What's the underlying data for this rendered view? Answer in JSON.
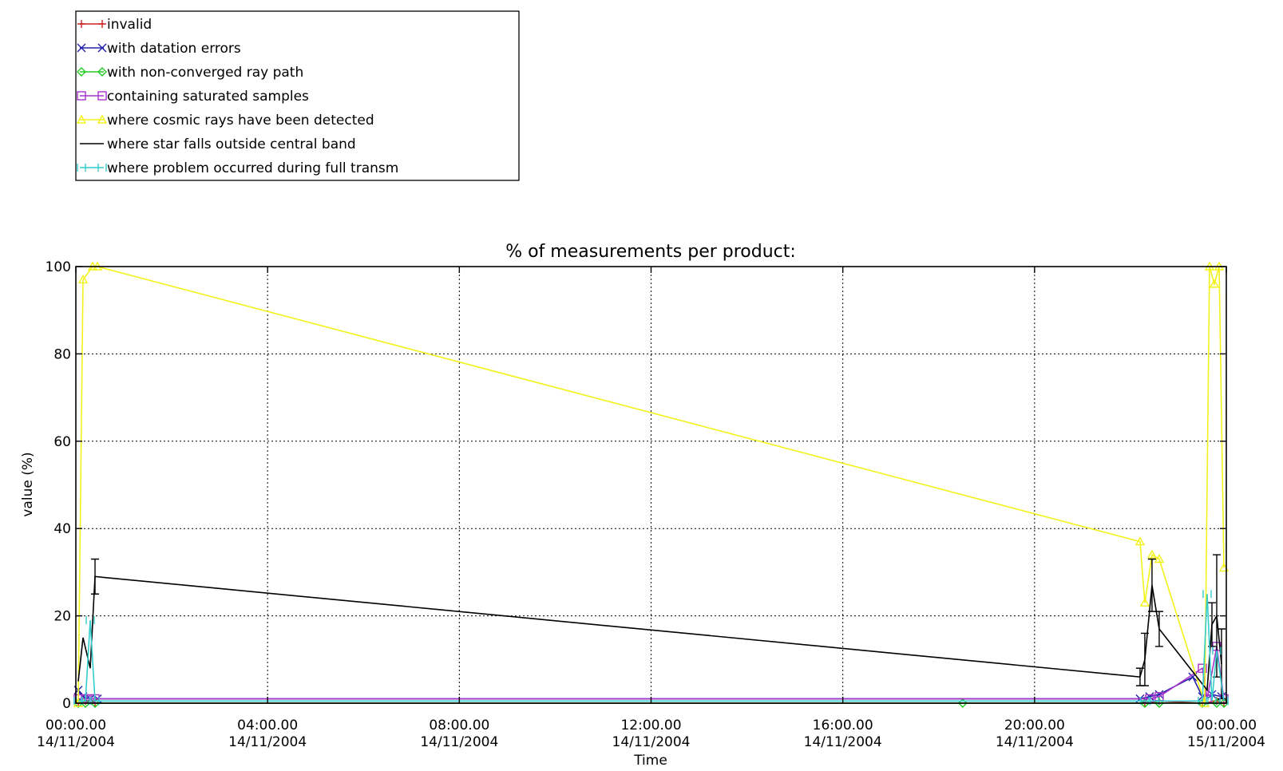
{
  "chart_data": {
    "type": "line",
    "title": "% of measurements per product:",
    "xlabel": "Time",
    "ylabel": "value (%)",
    "ylim": [
      0,
      100
    ],
    "xlim": [
      0,
      24
    ],
    "grid": true,
    "legend_position": "top-left, outside plot",
    "x_ticks": [
      {
        "value": 0,
        "time": "00:00.00",
        "date": "14/11/2004"
      },
      {
        "value": 4,
        "time": "04:00.00",
        "date": "14/11/2004"
      },
      {
        "value": 8,
        "time": "08:00.00",
        "date": "14/11/2004"
      },
      {
        "value": 12,
        "time": "12:00.00",
        "date": "14/11/2004"
      },
      {
        "value": 16,
        "time": "16:00.00",
        "date": "14/11/2004"
      },
      {
        "value": 20,
        "time": "20:00.00",
        "date": "14/11/2004"
      },
      {
        "value": 24,
        "time": "00:00.00",
        "date": "15/11/2004"
      }
    ],
    "y_ticks": [
      "0",
      "20",
      "40",
      "60",
      "80",
      "100"
    ],
    "series": [
      {
        "name": "invalid",
        "color": "#cc2222",
        "marker": "plus",
        "x": [
          0.05,
          0.2,
          0.4,
          22.3,
          22.6,
          23.5,
          23.8,
          23.95
        ],
        "y": [
          0,
          0.5,
          0,
          0,
          0.5,
          0,
          0.5,
          0
        ]
      },
      {
        "name": "with datation errors",
        "color": "#2222aa",
        "marker": "x",
        "x": [
          0.05,
          0.15,
          0.3,
          0.45,
          22.2,
          22.4,
          22.6,
          23.3,
          23.5,
          23.7,
          23.9
        ],
        "y": [
          3,
          1.5,
          1,
          1,
          1,
          1.5,
          2,
          6,
          1.5,
          2,
          1.5
        ]
      },
      {
        "name": "with non-converged ray path",
        "color": "#22cc22",
        "marker": "diamond",
        "x": [
          0.05,
          0.2,
          0.4,
          18.5,
          22.3,
          22.6,
          23.5,
          23.8,
          23.95
        ],
        "y": [
          0,
          0,
          0,
          0,
          0,
          0,
          0,
          0,
          0
        ]
      },
      {
        "name": "containing saturated samples",
        "color": "#aa33cc",
        "marker": "square",
        "x": [
          0.05,
          0.2,
          0.3,
          0.4,
          22.4,
          22.6,
          23.5,
          23.6,
          23.8,
          23.95
        ],
        "y": [
          1,
          1,
          1,
          1,
          1,
          1.5,
          8,
          1,
          13,
          1
        ]
      },
      {
        "name": "where cosmic rays have been detected",
        "color": "#f2f21a",
        "marker": "triangle",
        "x": [
          0.05,
          0.15,
          0.35,
          0.45,
          22.2,
          22.3,
          22.45,
          22.6,
          23.55,
          23.65,
          23.75,
          23.85,
          23.95
        ],
        "y": [
          0,
          97,
          100,
          100,
          37,
          23,
          34,
          33,
          0,
          100,
          96,
          100,
          31
        ]
      },
      {
        "name": "where star falls outside central band",
        "color": "#000000",
        "marker": "errorbar",
        "x": [
          0.05,
          0.15,
          0.3,
          0.4,
          22.2,
          22.3,
          22.45,
          22.6,
          23.6,
          23.7,
          23.8,
          23.9
        ],
        "y": [
          5,
          15,
          8,
          29,
          6,
          10,
          27,
          17,
          3,
          18,
          20,
          9
        ],
        "err": [
          0,
          0,
          0,
          4,
          2,
          6,
          6,
          4,
          0,
          5,
          14,
          8
        ]
      },
      {
        "name": "where problem occurred during full transm",
        "color": "#33cccc",
        "marker": "tick",
        "x": [
          0.05,
          0.2,
          0.3,
          0.4,
          22.3,
          22.5,
          23.5,
          23.6,
          23.7,
          23.8,
          23.95
        ],
        "y": [
          0.5,
          0.5,
          19,
          0.5,
          0.5,
          0.5,
          0.5,
          25,
          0.5,
          12,
          0.5
        ]
      }
    ]
  }
}
